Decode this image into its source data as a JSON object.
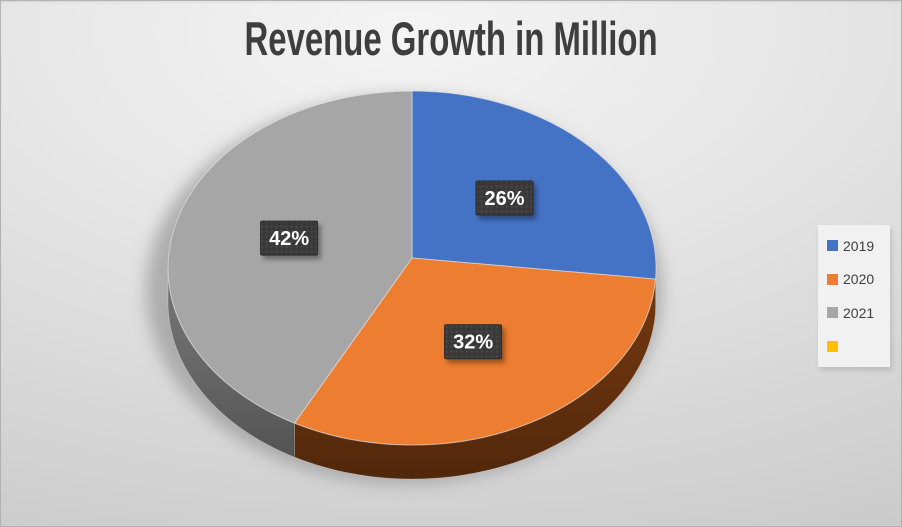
{
  "chart_data": {
    "type": "pie",
    "style": "3d",
    "title": "Revenue Growth in Million",
    "categories": [
      "2019",
      "2020",
      "2021",
      ""
    ],
    "values": [
      26,
      32,
      42,
      0
    ],
    "unit": "percent",
    "data_labels": [
      "26%",
      "32%",
      "42%"
    ],
    "colors": [
      "#4472C4",
      "#ED7D31",
      "#A6A6A6",
      "#FFC000"
    ],
    "side_colors": [
      "#2C4D8E",
      "#73380F",
      "#767676",
      "#B38600"
    ],
    "label_box": {
      "bg": "#3B3B3B",
      "text": "#FFFFFF"
    },
    "title_color": "#3E3E3E",
    "legend_position": "right",
    "legend": [
      "2019",
      "2020",
      "2021",
      ""
    ]
  },
  "legend": {
    "items": [
      {
        "label": "2019",
        "color": "#4472C4"
      },
      {
        "label": "2020",
        "color": "#ED7D31"
      },
      {
        "label": "2021",
        "color": "#A6A6A6"
      },
      {
        "label": "",
        "color": "#FFC000"
      }
    ]
  }
}
